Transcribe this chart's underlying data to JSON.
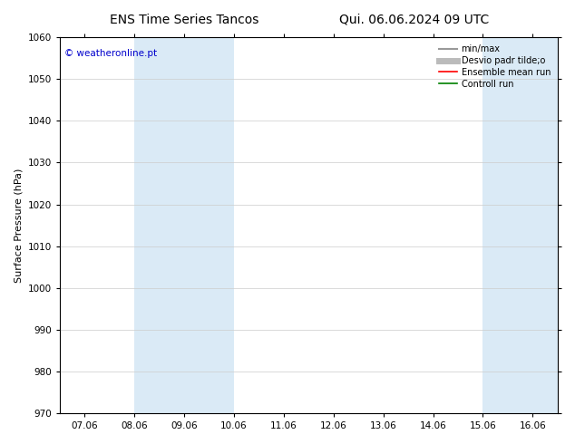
{
  "title_left": "ENS Time Series Tancos",
  "title_right": "Qui. 06.06.2024 09 UTC",
  "ylabel": "Surface Pressure (hPa)",
  "ylim": [
    970,
    1060
  ],
  "yticks": [
    970,
    980,
    990,
    1000,
    1010,
    1020,
    1030,
    1040,
    1050,
    1060
  ],
  "xtick_labels": [
    "07.06",
    "08.06",
    "09.06",
    "10.06",
    "11.06",
    "12.06",
    "13.06",
    "14.06",
    "15.06",
    "16.06"
  ],
  "xlim": [
    0,
    9
  ],
  "shaded_regions": [
    {
      "xmin": 1.0,
      "xmax": 3.0,
      "color": "#daeaf6"
    },
    {
      "xmin": 8.0,
      "xmax": 9.5,
      "color": "#daeaf6"
    }
  ],
  "watermark": "© weatheronline.pt",
  "watermark_color": "#0000cc",
  "bg_color": "#ffffff",
  "plot_bg_color": "#ffffff",
  "legend_entries": [
    {
      "label": "min/max",
      "color": "#999999",
      "lw": 1.5,
      "style": "-"
    },
    {
      "label": "Desvio padr tilde;o",
      "color": "#bbbbbb",
      "lw": 5,
      "style": "-"
    },
    {
      "label": "Ensemble mean run",
      "color": "#ff0000",
      "lw": 1.2,
      "style": "-"
    },
    {
      "label": "Controll run",
      "color": "#008000",
      "lw": 1.2,
      "style": "-"
    }
  ],
  "grid_color": "#cccccc",
  "spine_color": "#000000",
  "tick_color": "#000000",
  "title_fontsize": 10,
  "axis_label_fontsize": 8,
  "tick_fontsize": 7.5,
  "watermark_fontsize": 7.5,
  "legend_fontsize": 7
}
